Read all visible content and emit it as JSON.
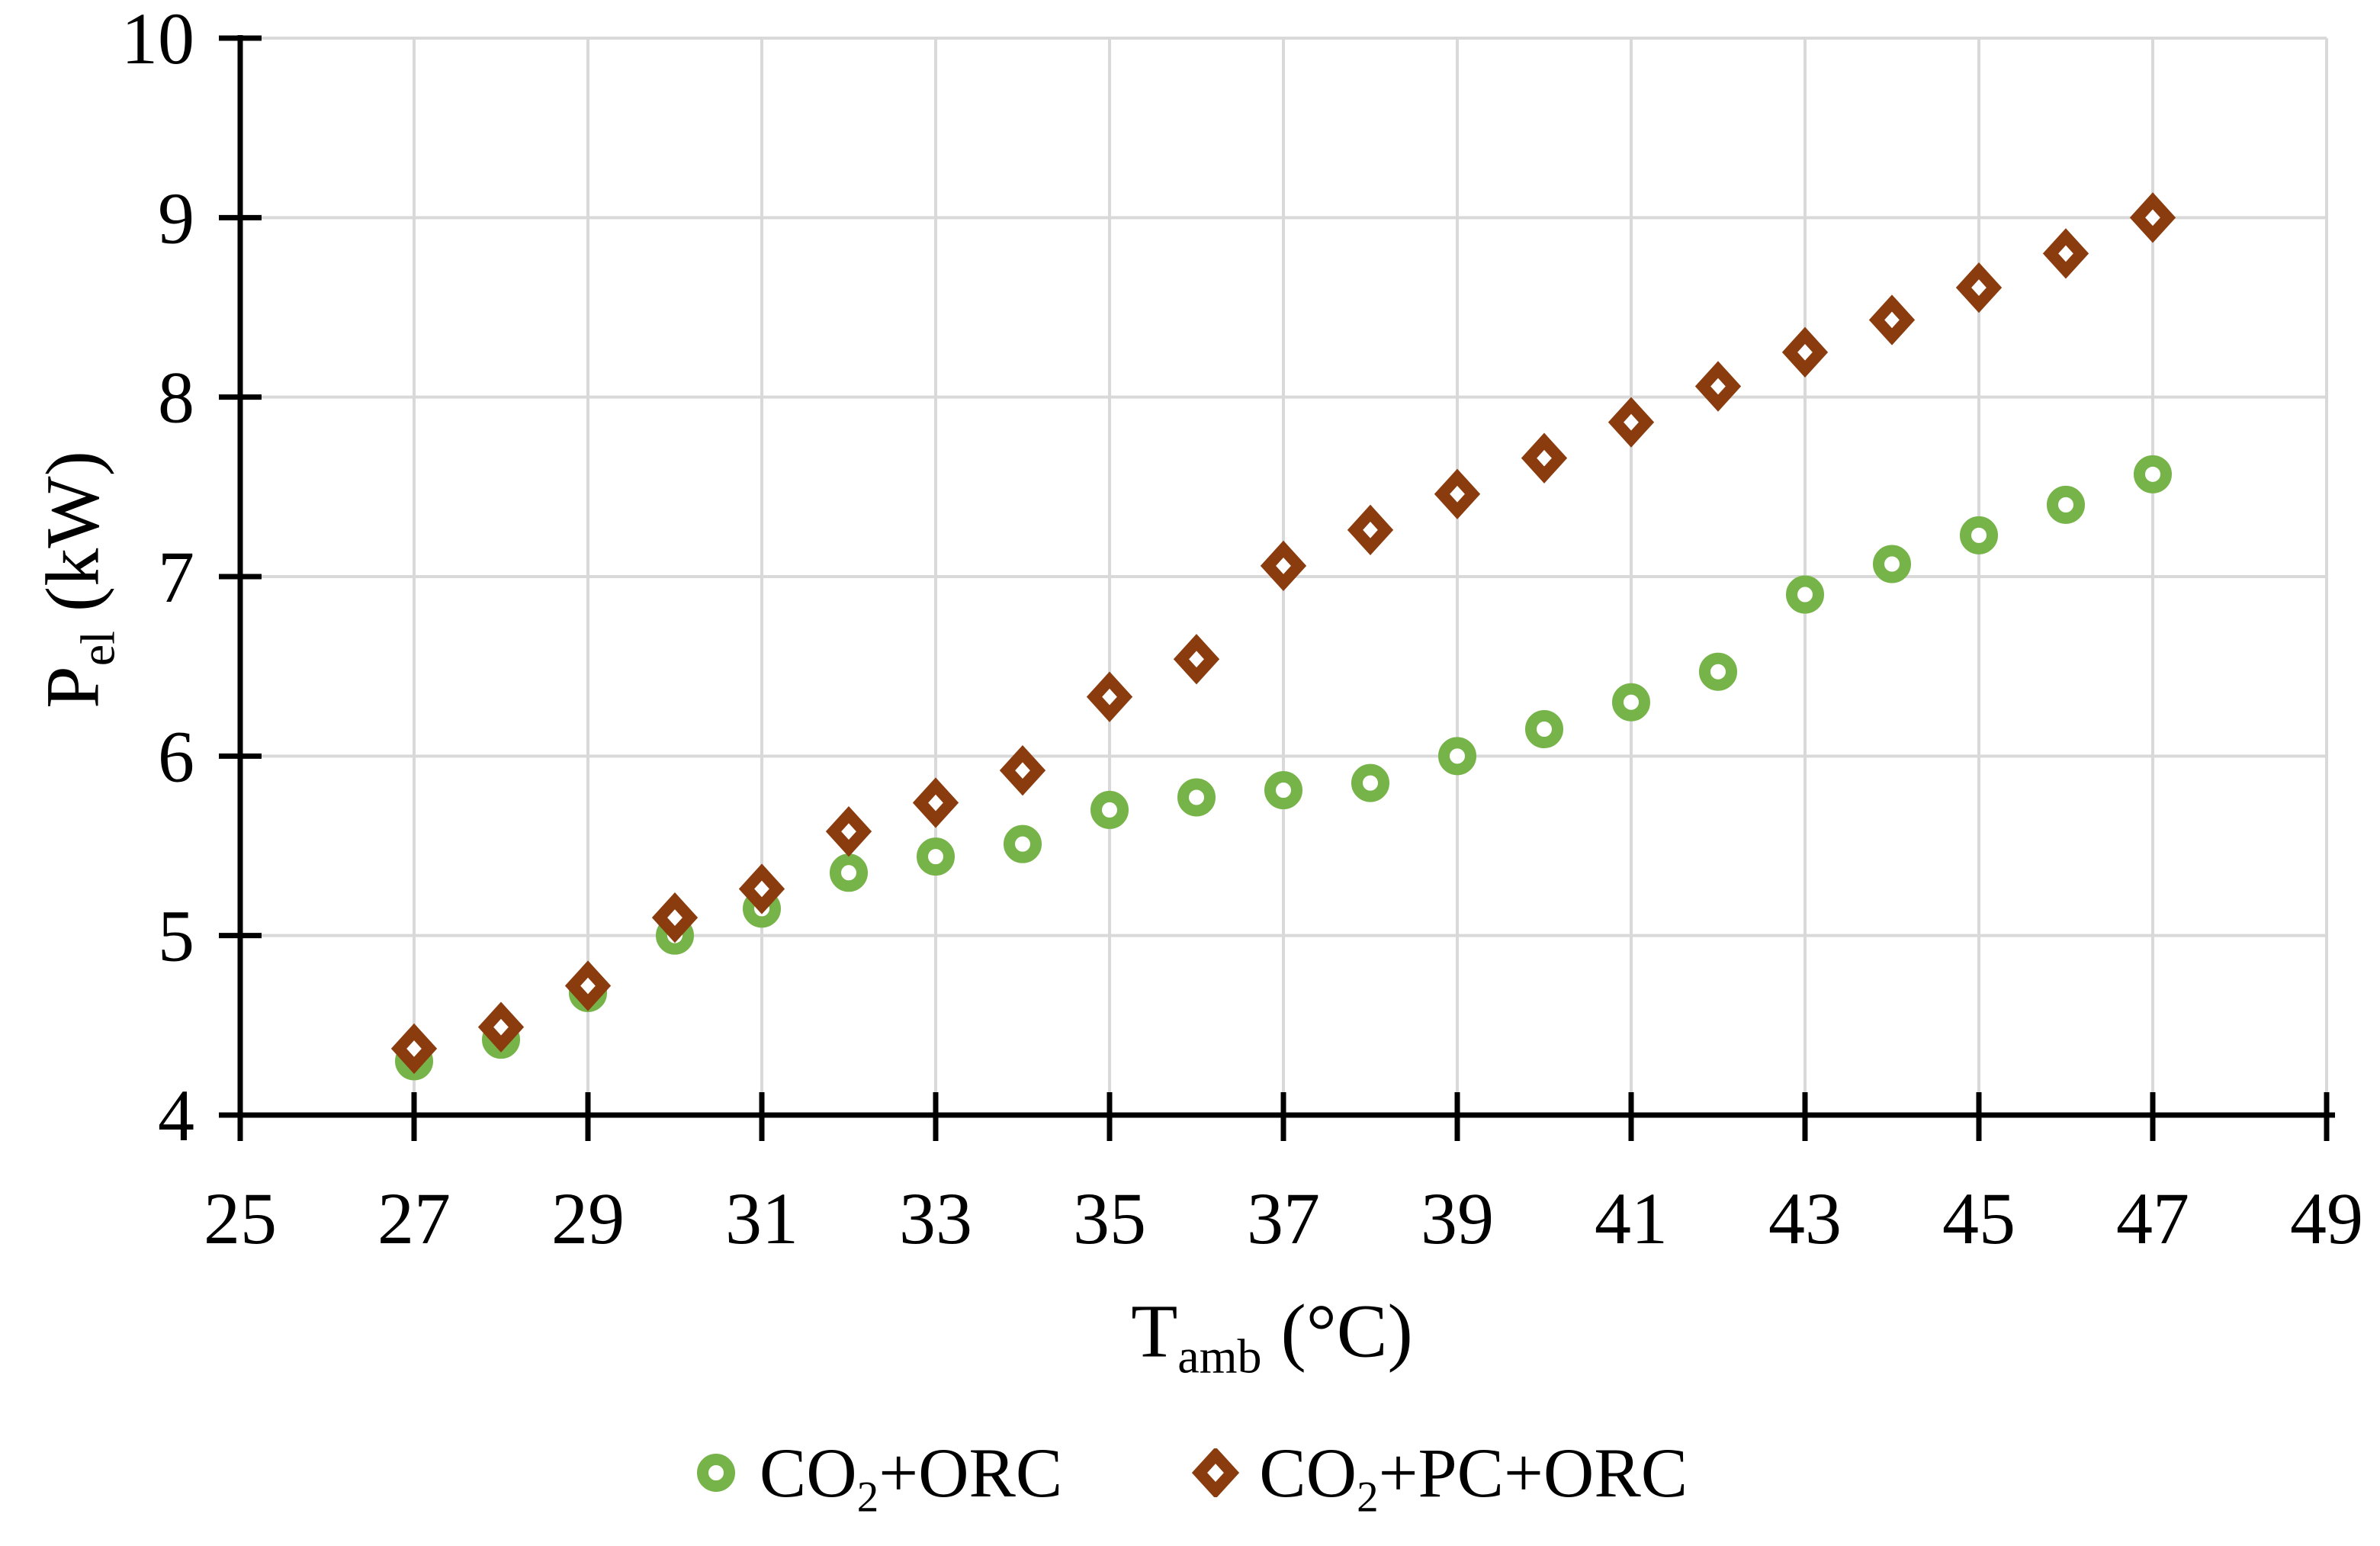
{
  "chart": {
    "background": "#FFFFFF",
    "grid_color": "#D9D9D9",
    "axis_color": "#000000",
    "text_color": "#000000"
  },
  "chart_data": {
    "type": "scatter",
    "title": "",
    "x": [
      27,
      28,
      29,
      30,
      31,
      32,
      33,
      34,
      35,
      36,
      37,
      38,
      39,
      40,
      41,
      42,
      43,
      44,
      45,
      46,
      47
    ],
    "series": [
      {
        "name": "CO2+ORC",
        "marker": "circle",
        "color": "#76B349",
        "values": [
          4.3,
          4.42,
          4.68,
          5.0,
          5.15,
          5.35,
          5.44,
          5.51,
          5.7,
          5.77,
          5.81,
          5.85,
          6.0,
          6.15,
          6.3,
          6.47,
          6.9,
          7.07,
          7.23,
          7.4,
          7.57
        ]
      },
      {
        "name": "CO2+PC+ORC",
        "marker": "diamond",
        "color": "#8A3C0F",
        "values": [
          4.37,
          4.49,
          4.72,
          5.1,
          5.26,
          5.58,
          5.74,
          5.92,
          6.33,
          6.54,
          7.06,
          7.26,
          7.46,
          7.66,
          7.86,
          8.06,
          8.25,
          8.43,
          8.61,
          8.8,
          9.0
        ]
      }
    ],
    "xlim": [
      25,
      49
    ],
    "ylim": [
      4,
      10
    ],
    "xticks": [
      25,
      27,
      29,
      31,
      33,
      35,
      37,
      39,
      41,
      43,
      45,
      47,
      49
    ],
    "yticks": [
      4,
      5,
      6,
      7,
      8,
      9,
      10
    ],
    "grid": true,
    "legend_position": "bottom",
    "xlabel_parts": [
      {
        "t": "T"
      },
      {
        "t": "amb",
        "sub": true
      },
      {
        "t": " (°C)"
      }
    ],
    "ylabel_parts": [
      {
        "t": "P"
      },
      {
        "t": "el",
        "sub": true
      },
      {
        "t": " (kW)"
      }
    ],
    "legend": [
      {
        "marker": "circle",
        "color": "#76B349",
        "parts": [
          {
            "t": "CO"
          },
          {
            "t": "2",
            "sub": true
          },
          {
            "t": "+ORC"
          }
        ]
      },
      {
        "marker": "diamond",
        "color": "#8A3C0F",
        "parts": [
          {
            "t": "CO"
          },
          {
            "t": "2",
            "sub": true
          },
          {
            "t": "+PC+ORC"
          }
        ]
      }
    ]
  }
}
